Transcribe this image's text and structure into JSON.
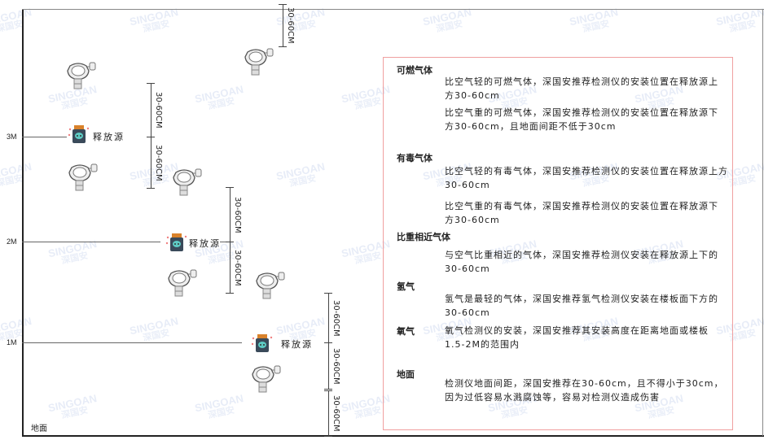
{
  "levels": {
    "m3": "3M",
    "m2": "2M",
    "m1": "1M",
    "ground": "地面"
  },
  "source_label": "释放源",
  "dimension_label": "30-60CM",
  "watermark": {
    "brand": "SINGOAN",
    "cn": "深国安"
  },
  "colors": {
    "box_border": "#f0a0a0",
    "source_body": "#3a4a5a",
    "source_top": "#d9822b",
    "source_face": "#5ecbc4"
  },
  "notes": [
    {
      "heading": "可燃气体",
      "paragraphs": [
        "比空气轻的可燃气体，深国安推荐检测仪的安装位置在释放源上方30-60cm",
        "比空气重的可燃气体，深国安推荐检测仪的安装位置在释放源下方30-60cm，且地面间距不低于30cm"
      ]
    },
    {
      "heading": "有毒气体",
      "paragraphs": [
        "比空气轻的有毒气体，深国安推荐检测仪的安装位置在释放源上方30-60cm",
        "比空气重的有毒气体，深国安推荐检测仪的安装位置在释放源下方30-60cm"
      ]
    },
    {
      "heading": "比重相近气体",
      "paragraphs": [
        "与空气比重相近的气体，深国安推荐检测仪安装在释放源上下的30-60cm"
      ]
    },
    {
      "heading": "氢气",
      "paragraphs": [
        "氢气是最轻的气体，深国安推荐氢气检测仪安装在楼板面下方的30-60cm"
      ]
    },
    {
      "heading": "氧气",
      "paragraphs": [
        "氧气检测仪的安装，深国安推荐其安装高度在距离地面或楼板1.5-2M的范围内"
      ]
    },
    {
      "heading": "地面",
      "paragraphs": [
        "检测仪地面间距，深国安推荐在30-60cm，且不得小于30cm，因为过低容易水溅腐蚀等，容易对检测仪造成伤害"
      ]
    }
  ]
}
